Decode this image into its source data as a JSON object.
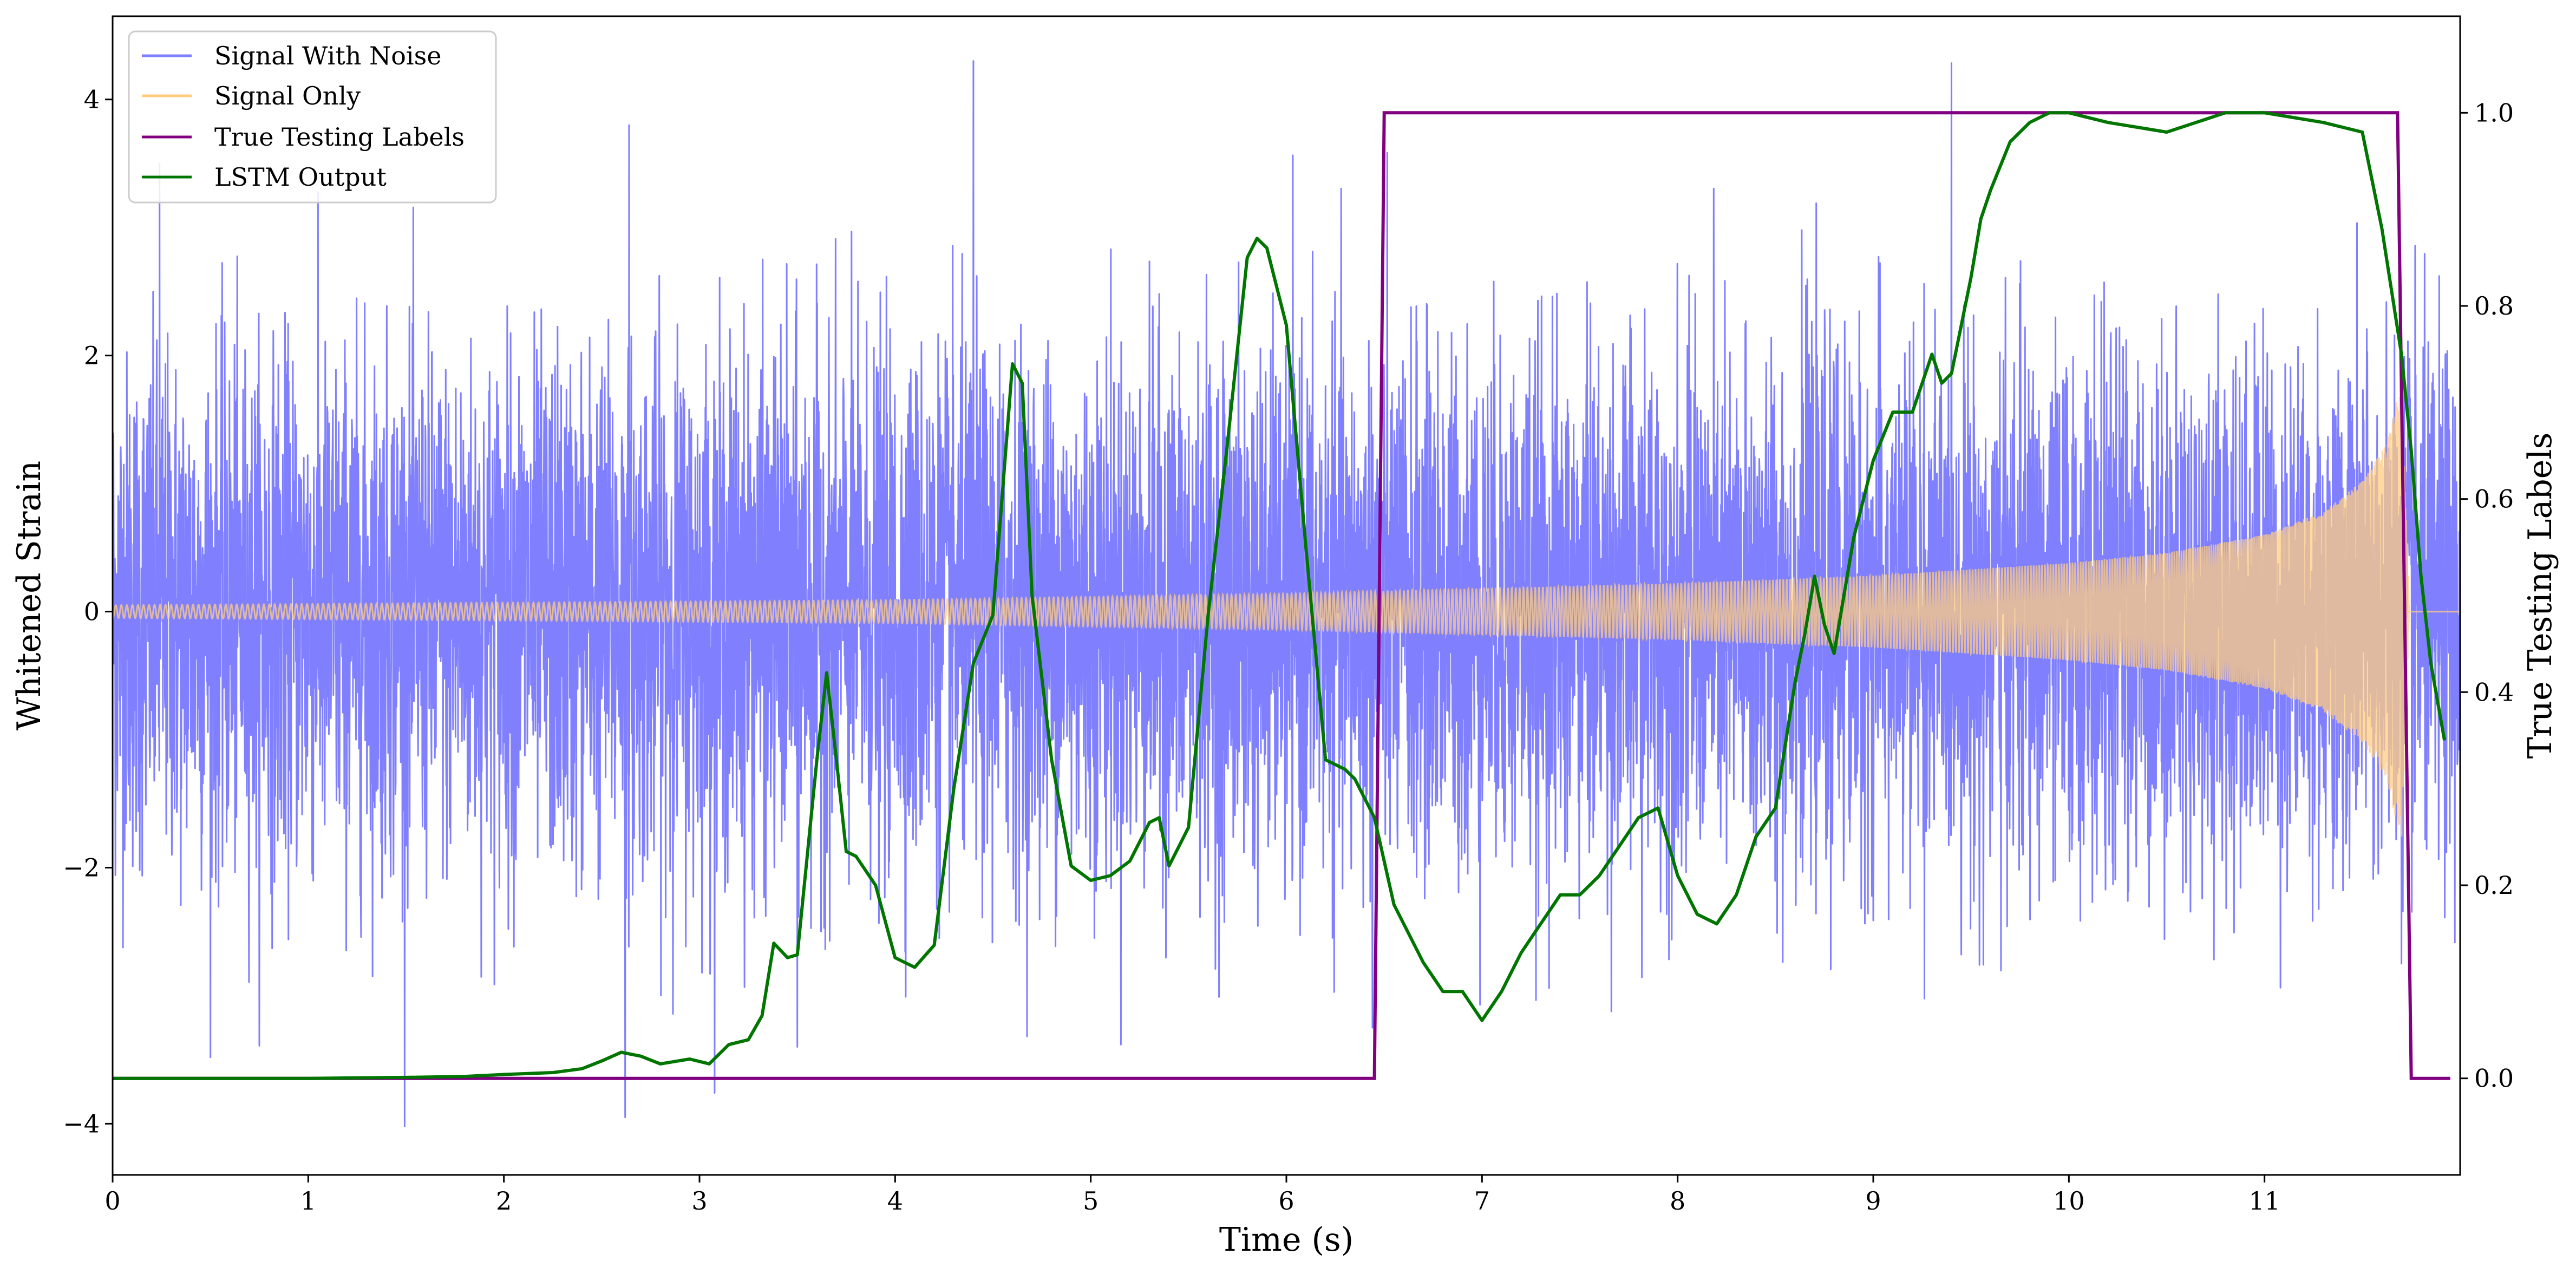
{
  "chart_data": {
    "type": "line",
    "title": "",
    "xlabel": "Time (s)",
    "ylabel": "Whitened Strain",
    "ylabel_right": "True Testing Labels",
    "xlim": [
      0,
      12
    ],
    "ylim": [
      -4.4,
      4.65
    ],
    "ylim_right": [
      -0.1,
      1.1
    ],
    "x_ticks": [
      "0",
      "1",
      "2",
      "3",
      "4",
      "5",
      "6",
      "7",
      "8",
      "9",
      "10",
      "11"
    ],
    "y_ticks": [
      "−4",
      "−2",
      "0",
      "2",
      "4"
    ],
    "y_ticks_right": [
      "0.0",
      "0.2",
      "0.4",
      "0.6",
      "0.8",
      "1.0"
    ],
    "grid": false,
    "legend_position": "upper-left",
    "series": [
      {
        "name": "Signal With Noise",
        "color": "#8080ff",
        "axis": "left",
        "description_values": {
          "noise_std": 1.0,
          "notable_spikes": [
            [
              0.24,
              3.5
            ],
            [
              2.64,
              3.8
            ],
            [
              4.4,
              4.3
            ],
            [
              2.62,
              -3.95
            ],
            [
              6.44,
              -3.25
            ],
            [
              3.5,
              -3.4
            ],
            [
              11.7,
              -2.75
            ]
          ]
        }
      },
      {
        "name": "Signal Only",
        "color": "#ffcc80",
        "axis": "left",
        "envelope": [
          [
            0,
            0.05
          ],
          [
            2,
            0.07
          ],
          [
            4,
            0.09
          ],
          [
            6,
            0.14
          ],
          [
            8,
            0.22
          ],
          [
            9,
            0.28
          ],
          [
            10,
            0.38
          ],
          [
            10.5,
            0.46
          ],
          [
            11,
            0.6
          ],
          [
            11.3,
            0.78
          ],
          [
            11.5,
            1.02
          ],
          [
            11.62,
            1.3
          ],
          [
            11.7,
            1.8
          ],
          [
            11.74,
            0.0
          ],
          [
            12,
            0.0
          ]
        ]
      },
      {
        "name": "True Testing Labels",
        "color": "#800080",
        "axis": "right",
        "x": [
          0,
          6.45,
          6.5,
          11.68,
          11.75,
          11.95
        ],
        "y": [
          0,
          0,
          1,
          1,
          0,
          0
        ]
      },
      {
        "name": "LSTM Output",
        "color": "#007500",
        "axis": "right",
        "x": [
          0,
          1.0,
          1.5,
          1.8,
          2.0,
          2.25,
          2.4,
          2.5,
          2.6,
          2.7,
          2.8,
          2.95,
          3.05,
          3.15,
          3.25,
          3.32,
          3.38,
          3.45,
          3.5,
          3.6,
          3.65,
          3.7,
          3.75,
          3.8,
          3.9,
          4.0,
          4.1,
          4.2,
          4.3,
          4.4,
          4.5,
          4.6,
          4.65,
          4.7,
          4.8,
          4.9,
          5.0,
          5.1,
          5.2,
          5.3,
          5.35,
          5.4,
          5.45,
          5.5,
          5.6,
          5.7,
          5.8,
          5.85,
          5.9,
          6.0,
          6.1,
          6.2,
          6.3,
          6.35,
          6.45,
          6.55,
          6.7,
          6.8,
          6.9,
          7.0,
          7.1,
          7.2,
          7.3,
          7.4,
          7.5,
          7.6,
          7.7,
          7.8,
          7.9,
          8.0,
          8.1,
          8.2,
          8.3,
          8.4,
          8.5,
          8.6,
          8.65,
          8.7,
          8.75,
          8.8,
          8.9,
          9.0,
          9.1,
          9.2,
          9.3,
          9.35,
          9.4,
          9.5,
          9.55,
          9.6,
          9.7,
          9.8,
          9.9,
          10.0,
          10.2,
          10.5,
          10.8,
          11.0,
          11.3,
          11.5,
          11.6,
          11.7,
          11.75,
          11.8,
          11.85,
          11.92
        ],
        "y": [
          0.0,
          0.0,
          0.001,
          0.002,
          0.004,
          0.006,
          0.01,
          0.018,
          0.027,
          0.023,
          0.015,
          0.02,
          0.015,
          0.035,
          0.04,
          0.065,
          0.14,
          0.125,
          0.128,
          0.33,
          0.42,
          0.33,
          0.235,
          0.23,
          0.2,
          0.125,
          0.115,
          0.138,
          0.3,
          0.43,
          0.48,
          0.74,
          0.72,
          0.5,
          0.33,
          0.22,
          0.205,
          0.21,
          0.225,
          0.265,
          0.27,
          0.22,
          0.24,
          0.26,
          0.48,
          0.66,
          0.85,
          0.87,
          0.86,
          0.78,
          0.55,
          0.33,
          0.32,
          0.31,
          0.27,
          0.18,
          0.12,
          0.09,
          0.09,
          0.06,
          0.09,
          0.13,
          0.16,
          0.19,
          0.19,
          0.21,
          0.24,
          0.27,
          0.28,
          0.21,
          0.17,
          0.16,
          0.19,
          0.25,
          0.28,
          0.41,
          0.46,
          0.52,
          0.47,
          0.44,
          0.56,
          0.64,
          0.69,
          0.69,
          0.75,
          0.72,
          0.73,
          0.83,
          0.89,
          0.92,
          0.97,
          0.99,
          1.0,
          1.0,
          0.99,
          0.98,
          1.0,
          1.0,
          0.99,
          0.98,
          0.88,
          0.75,
          0.65,
          0.52,
          0.43,
          0.35
        ]
      }
    ]
  }
}
